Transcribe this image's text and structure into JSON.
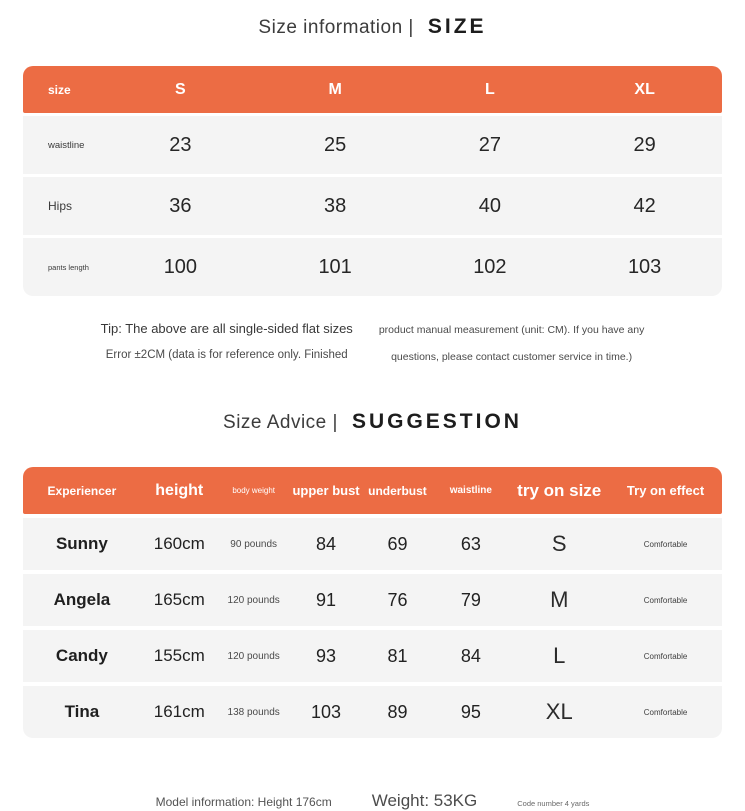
{
  "colors": {
    "accent": "#EC6C44",
    "row_bg": "#F4F4F4"
  },
  "size_section": {
    "title_left": "Size information |",
    "title_right": "SIZE",
    "table": {
      "corner_label": "size",
      "columns": [
        "S",
        "M",
        "L",
        "XL"
      ],
      "rows": [
        {
          "label": "waistline",
          "values": [
            "23",
            "25",
            "27",
            "29"
          ]
        },
        {
          "label": "Hips",
          "values": [
            "36",
            "38",
            "40",
            "42"
          ]
        },
        {
          "label": "pants length",
          "values": [
            "100",
            "101",
            "102",
            "103"
          ]
        }
      ]
    },
    "tip": {
      "left_line1": "Tip: The above are all single-sided flat sizes",
      "left_line2": "Error ±2CM (data is for reference only. Finished",
      "right_line1": "product manual measurement (unit: CM). If you have any",
      "right_line2": "questions, please contact customer service in time.)"
    }
  },
  "advice_section": {
    "title_left": "Size Advice |",
    "title_right": "SUGGESTION",
    "table": {
      "columns": [
        "Experiencer",
        "height",
        "body weight",
        "upper bust",
        "underbust",
        "waistline",
        "try on size",
        "Try on effect"
      ],
      "rows": [
        [
          "Sunny",
          "160cm",
          "90 pounds",
          "84",
          "69",
          "63",
          "S",
          "Comfortable"
        ],
        [
          "Angela",
          "165cm",
          "120 pounds",
          "91",
          "76",
          "79",
          "M",
          "Comfortable"
        ],
        [
          "Candy",
          "155cm",
          "120 pounds",
          "93",
          "81",
          "84",
          "L",
          "Comfortable"
        ],
        [
          "Tina",
          "161cm",
          "138 pounds",
          "103",
          "89",
          "95",
          "XL",
          "Comfortable"
        ]
      ]
    },
    "footer": {
      "model_info": "Model information: Height 176cm",
      "weight": "Weight: 53KG",
      "code": "Code number 4 yards"
    }
  }
}
